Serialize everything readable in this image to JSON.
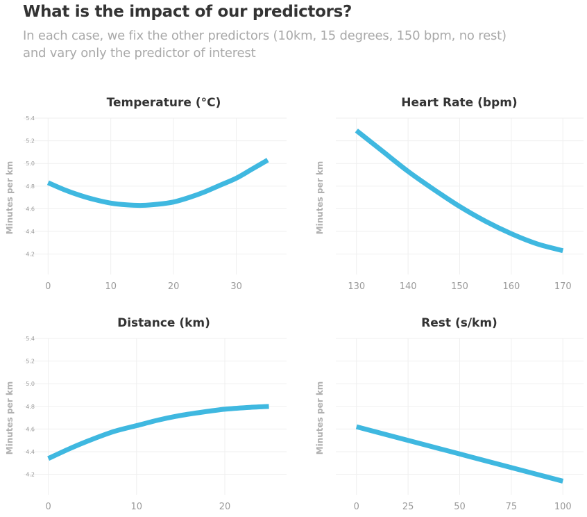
{
  "title": "What is the impact of our predictors?",
  "subtitle_line1": "In each case, we fix the other predictors (10km, 15 degrees, 150 bpm, no rest)",
  "subtitle_line2": "and vary only the predictor of interest",
  "colors": {
    "line": "#3fb8e0",
    "title": "#333333",
    "muted": "#a9a9a9",
    "grid": "#efefef"
  },
  "chart_data": [
    {
      "id": "temp",
      "type": "line",
      "title": "Temperature (°C)",
      "xlabel": "",
      "ylabel": "Minutes per km",
      "ylim": [
        4.02,
        5.4
      ],
      "xlim": [
        -3.9,
        38.0
      ],
      "yticks": [
        4.2,
        4.4,
        4.6,
        4.8,
        5.0,
        5.2,
        5.4
      ],
      "ytick_labels": [
        "4.2",
        "4.4",
        "4.6",
        "4.8",
        "5.0",
        "5.2",
        "5.4"
      ],
      "xticks": [
        0,
        10,
        20,
        30
      ],
      "xtick_labels": [
        "0",
        "10",
        "20",
        "30"
      ],
      "show_ytick_labels": true,
      "x": [
        0,
        2.5,
        5,
        7.5,
        10,
        12.5,
        15,
        17.5,
        20,
        22.5,
        25,
        27.5,
        30,
        32.5,
        35
      ],
      "y": [
        4.83,
        4.77,
        4.72,
        4.68,
        4.65,
        4.635,
        4.63,
        4.64,
        4.66,
        4.7,
        4.75,
        4.81,
        4.87,
        4.95,
        5.03
      ]
    },
    {
      "id": "hr",
      "type": "line",
      "title": "Heart Rate (bpm)",
      "xlabel": "",
      "ylabel": "Minutes per km",
      "ylim": [
        4.02,
        5.4
      ],
      "xlim": [
        126.0,
        174.0
      ],
      "yticks": [
        4.2,
        4.4,
        4.6,
        4.8,
        5.0,
        5.2,
        5.4
      ],
      "ytick_labels": [
        "4.2",
        "4.4",
        "4.6",
        "4.8",
        "5.0",
        "5.2",
        "5.4"
      ],
      "xticks": [
        130,
        140,
        150,
        160,
        170
      ],
      "xtick_labels": [
        "130",
        "140",
        "150",
        "160",
        "170"
      ],
      "show_ytick_labels": false,
      "x": [
        130,
        135,
        140,
        145,
        150,
        155,
        160,
        165,
        170
      ],
      "y": [
        5.29,
        5.11,
        4.93,
        4.77,
        4.62,
        4.49,
        4.38,
        4.29,
        4.23
      ]
    },
    {
      "id": "dist",
      "type": "line",
      "title": "Distance (km)",
      "xlabel": "",
      "ylabel": "Minutes per km",
      "ylim": [
        4.02,
        5.4
      ],
      "xlim": [
        -2.8,
        27.0
      ],
      "yticks": [
        4.2,
        4.4,
        4.6,
        4.8,
        5.0,
        5.2,
        5.4
      ],
      "ytick_labels": [
        "4.2",
        "4.4",
        "4.6",
        "4.8",
        "5.0",
        "5.2",
        "5.4"
      ],
      "xticks": [
        0,
        10,
        20
      ],
      "xtick_labels": [
        "0",
        "10",
        "20"
      ],
      "show_ytick_labels": true,
      "x": [
        0,
        2.5,
        5,
        7.5,
        10,
        12.5,
        15,
        17.5,
        20,
        22.5,
        25
      ],
      "y": [
        4.34,
        4.43,
        4.51,
        4.58,
        4.63,
        4.68,
        4.72,
        4.75,
        4.775,
        4.79,
        4.8
      ]
    },
    {
      "id": "rest",
      "type": "line",
      "title": "Rest (s/km)",
      "xlabel": "",
      "ylabel": "Minutes per km",
      "ylim": [
        4.02,
        5.4
      ],
      "xlim": [
        -10.0,
        110.0
      ],
      "yticks": [
        4.2,
        4.4,
        4.6,
        4.8,
        5.0,
        5.2,
        5.4
      ],
      "ytick_labels": [
        "4.2",
        "4.4",
        "4.6",
        "4.8",
        "5.0",
        "5.2",
        "5.4"
      ],
      "xticks": [
        0,
        25,
        50,
        75,
        100
      ],
      "xtick_labels": [
        "0",
        "25",
        "50",
        "75",
        "100"
      ],
      "show_ytick_labels": false,
      "x": [
        0,
        25,
        50,
        75,
        100
      ],
      "y": [
        4.62,
        4.5,
        4.38,
        4.26,
        4.14
      ]
    }
  ]
}
